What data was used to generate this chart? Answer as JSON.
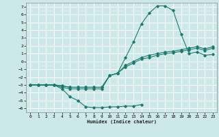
{
  "xlabel": "Humidex (Indice chaleur)",
  "background_color": "#cde8e8",
  "grid_color": "#ffffff",
  "line_color": "#1a7a6e",
  "xlim": [
    -0.5,
    23.5
  ],
  "ylim": [
    -6.5,
    7.5
  ],
  "x_ticks": [
    0,
    1,
    2,
    3,
    4,
    5,
    6,
    7,
    8,
    9,
    10,
    11,
    12,
    13,
    14,
    15,
    16,
    17,
    18,
    19,
    20,
    21,
    22,
    23
  ],
  "y_ticks": [
    -6,
    -5,
    -4,
    -3,
    -2,
    -1,
    0,
    1,
    2,
    3,
    4,
    5,
    6,
    7
  ],
  "lines": [
    {
      "x": [
        0,
        1,
        2,
        3,
        4,
        5,
        6,
        7,
        8,
        9,
        10,
        11,
        12,
        13,
        14
      ],
      "y": [
        -3,
        -3,
        -3,
        -3,
        -3.5,
        -4.5,
        -5,
        -5.8,
        -5.9,
        -5.9,
        -5.8,
        -5.8,
        -5.7,
        -5.7,
        -5.5
      ]
    },
    {
      "x": [
        0,
        1,
        2,
        3,
        4,
        5,
        6,
        7,
        8,
        9,
        10,
        11,
        12,
        13,
        14,
        15,
        16,
        17,
        18,
        19,
        20,
        21,
        22,
        23
      ],
      "y": [
        -3,
        -3,
        -3,
        -3,
        -3.3,
        -3.5,
        -3.5,
        -3.5,
        -3.5,
        -3.5,
        -1.8,
        -1.5,
        0.5,
        2.5,
        4.8,
        6.2,
        7.1,
        7.1,
        6.5,
        3.5,
        1,
        1.2,
        0.8,
        0.9
      ]
    },
    {
      "x": [
        0,
        1,
        2,
        3,
        4,
        5,
        6,
        7,
        8,
        9,
        10,
        11,
        12,
        13,
        14,
        15,
        16,
        17,
        18,
        19,
        20,
        21,
        22,
        23
      ],
      "y": [
        -3,
        -3,
        -3,
        -3,
        -3.1,
        -3.3,
        -3.3,
        -3.3,
        -3.3,
        -3.3,
        -1.8,
        -1.5,
        -0.5,
        0.0,
        0.5,
        0.8,
        1.0,
        1.2,
        1.3,
        1.5,
        1.7,
        1.9,
        1.6,
        1.9
      ]
    },
    {
      "x": [
        0,
        1,
        2,
        3,
        4,
        5,
        6,
        7,
        8,
        9,
        10,
        11,
        12,
        13,
        14,
        15,
        16,
        17,
        18,
        19,
        20,
        21,
        22,
        23
      ],
      "y": [
        -3,
        -3,
        -3,
        -3,
        -3.1,
        -3.3,
        -3.3,
        -3.3,
        -3.3,
        -3.3,
        -1.8,
        -1.5,
        -0.7,
        -0.2,
        0.3,
        0.5,
        0.8,
        1.0,
        1.1,
        1.3,
        1.5,
        1.7,
        1.4,
        1.7
      ]
    }
  ]
}
